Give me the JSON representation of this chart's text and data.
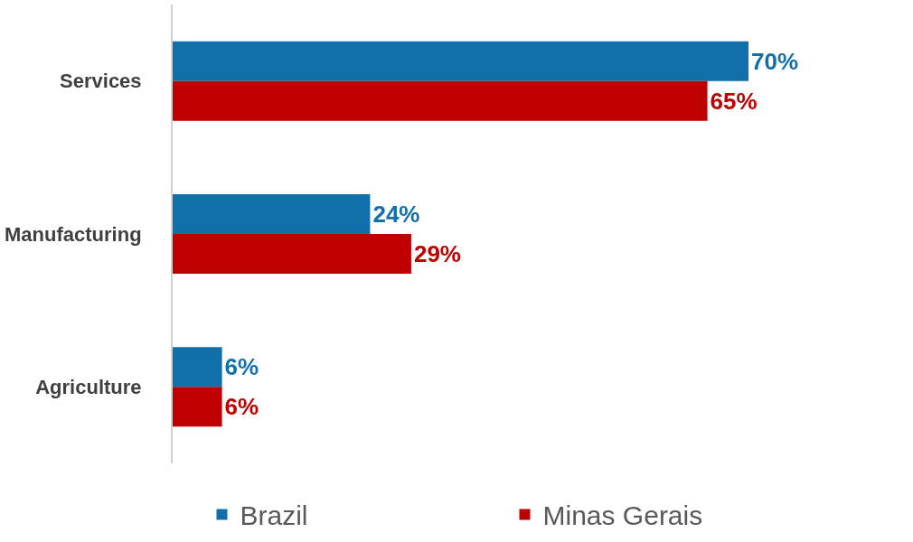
{
  "chart_data": {
    "type": "bar",
    "orientation": "horizontal",
    "categories": [
      "Services",
      "Manufacturing",
      "Agriculture"
    ],
    "series": [
      {
        "name": "Brazil",
        "color": "#1170aa",
        "values": [
          70,
          24,
          6
        ],
        "value_labels": [
          "70%",
          "24%",
          "6%"
        ]
      },
      {
        "name": "Minas Gerais",
        "color": "#c00000",
        "values": [
          65,
          29,
          6
        ],
        "value_labels": [
          "65%",
          "29%",
          "6%"
        ]
      }
    ],
    "legend": "bottom"
  }
}
